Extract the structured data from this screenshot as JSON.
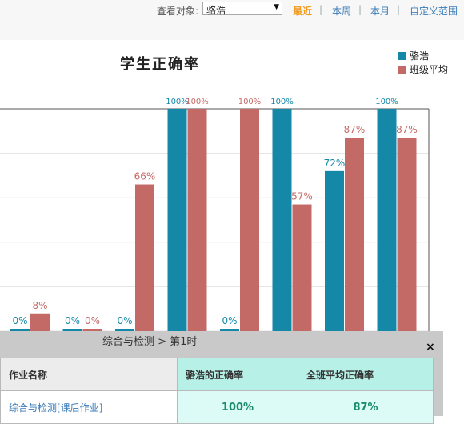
{
  "filter": {
    "label": "查看对象:",
    "selected": "骆浩",
    "ranges": [
      "最近",
      "本周",
      "本月",
      "自定义范围"
    ],
    "active_range": "最近"
  },
  "colors": {
    "self": "#1588a8",
    "class": "#c46a66",
    "active": "#f19a1f",
    "link": "#3a7bb8"
  },
  "chart_data": {
    "type": "bar",
    "title": "学生正确率",
    "ylim": [
      0,
      100
    ],
    "grid": true,
    "legend": "top-right",
    "series": [
      {
        "name": "骆浩",
        "values": [
          0,
          0,
          0,
          100,
          0,
          100,
          72,
          100
        ],
        "labels": [
          "0%",
          "0%",
          "0%",
          "100%",
          "0%",
          "100%",
          "72%",
          "100%"
        ]
      },
      {
        "name": "班级平均",
        "values": [
          8,
          0,
          66,
          100,
          100,
          57,
          87,
          87
        ],
        "labels": [
          "8%",
          "0%",
          "66%",
          "100%",
          "100%",
          "57%",
          "87%",
          "87%"
        ]
      }
    ]
  },
  "panel": {
    "title": "综合与检测 > 第1时",
    "close": "×",
    "headers": [
      "作业名称",
      "骆浩的正确率",
      "全班平均正确率"
    ],
    "rows": [
      {
        "name": "综合与检测[课后作业]",
        "self": "100%",
        "avg": "87%"
      }
    ]
  }
}
